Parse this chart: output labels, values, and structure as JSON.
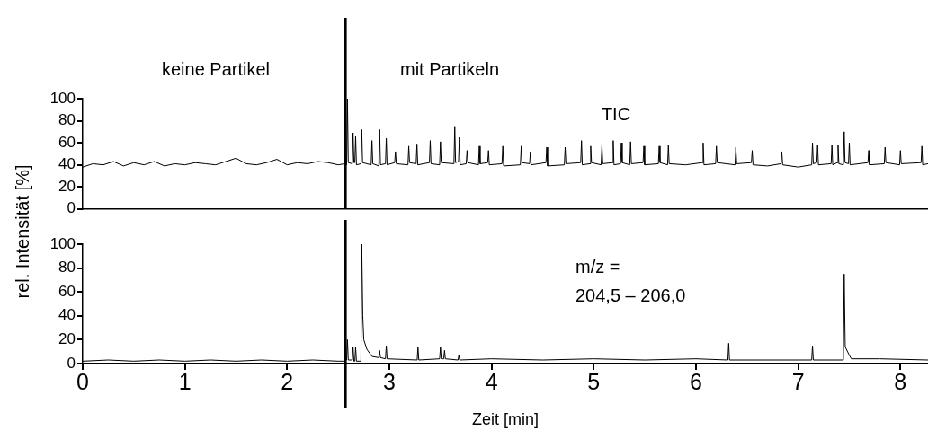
{
  "chart_data": [
    {
      "type": "line",
      "ylabel": "rel. Intensität [%]",
      "xlim": [
        0,
        8.27
      ],
      "ylim": [
        0,
        100
      ],
      "yticks": [
        0,
        20,
        40,
        60,
        80,
        100
      ],
      "tick_labels": "y",
      "annotations": [
        "keine Partikel",
        "mit Partikeln",
        "TIC"
      ],
      "ref_lines": [
        {
          "axis": "x",
          "value": 2.57,
          "color": "#000000"
        }
      ],
      "series": [
        {
          "color": "#000000",
          "x": [
            0,
            0.1,
            0.2,
            0.3,
            0.4,
            0.5,
            0.6,
            0.7,
            0.8,
            0.9,
            1.0,
            1.1,
            1.2,
            1.3,
            1.4,
            1.5,
            1.6,
            1.7,
            1.8,
            1.9,
            2.0,
            2.1,
            2.2,
            2.3,
            2.4,
            2.5,
            2.565,
            2.582,
            2.59,
            2.598,
            2.637,
            2.645,
            2.653,
            2.662,
            2.67,
            2.678,
            2.722,
            2.73,
            2.738,
            2.822,
            2.83,
            2.838,
            2.897,
            2.905,
            2.913,
            2.962,
            2.97,
            2.978,
            3.052,
            3.06,
            3.068,
            3.182,
            3.19,
            3.198,
            3.262,
            3.27,
            3.278,
            3.392,
            3.4,
            3.408,
            3.492,
            3.5,
            3.508,
            3.632,
            3.64,
            3.648,
            3.677,
            3.685,
            3.693,
            3.752,
            3.76,
            3.768,
            3.872,
            3.88,
            3.888,
            3.962,
            3.97,
            3.978,
            4.102,
            4.11,
            4.118,
            4.282,
            4.29,
            4.298,
            4.372,
            4.38,
            4.388,
            4.532,
            4.54,
            4.548,
            4.712,
            4.72,
            4.728,
            4.872,
            4.88,
            4.888,
            4.962,
            4.97,
            4.978,
            5.072,
            5.08,
            5.088,
            5.182,
            5.19,
            5.198,
            5.262,
            5.27,
            5.278,
            5.352,
            5.36,
            5.368,
            5.482,
            5.49,
            5.498,
            5.632,
            5.64,
            5.648,
            5.722,
            5.73,
            5.738,
            5.9,
            6.062,
            6.07,
            6.078,
            6.192,
            6.2,
            6.208,
            6.382,
            6.39,
            6.398,
            6.542,
            6.55,
            6.558,
            6.7,
            6.832,
            6.84,
            6.848,
            7.0,
            7.132,
            7.14,
            7.148,
            7.182,
            7.19,
            7.198,
            7.322,
            7.33,
            7.338,
            7.382,
            7.39,
            7.398,
            7.442,
            7.45,
            7.458,
            7.492,
            7.5,
            7.508,
            7.682,
            7.69,
            7.698,
            7.842,
            7.85,
            7.858,
            7.992,
            8.0,
            8.008,
            8.202,
            8.21,
            8.218,
            8.27
          ],
          "values": [
            38,
            41,
            40,
            43,
            39,
            42,
            40,
            43,
            39,
            41,
            40,
            42,
            41,
            40,
            43,
            46,
            41,
            40,
            42,
            45,
            40,
            42,
            41,
            43,
            42,
            40,
            41,
            40,
            100,
            42,
            41,
            69,
            42,
            42,
            66,
            40,
            41,
            72,
            42,
            40,
            62,
            41,
            39,
            72,
            40,
            41,
            64,
            40,
            42,
            52,
            41,
            40,
            57,
            42,
            41,
            59,
            40,
            42,
            62,
            41,
            40,
            61,
            42,
            41,
            75,
            42,
            43,
            65,
            40,
            41,
            53,
            42,
            40,
            57,
            41,
            42,
            53,
            40,
            41,
            57,
            39,
            40,
            57,
            42,
            41,
            52,
            40,
            42,
            56,
            39,
            40,
            56,
            41,
            42,
            62,
            40,
            41,
            57,
            42,
            40,
            58,
            41,
            42,
            62,
            40,
            41,
            60,
            42,
            40,
            61,
            41,
            42,
            57,
            40,
            41,
            57,
            42,
            40,
            58,
            41,
            40,
            42,
            60,
            40,
            41,
            57,
            42,
            40,
            56,
            41,
            42,
            53,
            40,
            39,
            41,
            52,
            40,
            38,
            40,
            60,
            41,
            42,
            58,
            40,
            41,
            58,
            40,
            42,
            58,
            41,
            40,
            70,
            42,
            41,
            60,
            40,
            42,
            53,
            40,
            41,
            56,
            42,
            40,
            53,
            41,
            42,
            57,
            40,
            41
          ]
        }
      ]
    },
    {
      "type": "line",
      "xlabel": "Zeit [min]",
      "xlim": [
        0,
        8.27
      ],
      "xticks": [
        0,
        1,
        2,
        3,
        4,
        5,
        6,
        7,
        8
      ],
      "ylim": [
        0,
        100
      ],
      "yticks": [
        0,
        20,
        40,
        60,
        80,
        100
      ],
      "annotations": [
        "m/z =",
        "204,5 – 206,0"
      ],
      "ref_lines": [
        {
          "axis": "x",
          "value": 2.57,
          "color": "#000000"
        }
      ],
      "series": [
        {
          "color": "#000000",
          "x": [
            0,
            0.25,
            0.5,
            0.75,
            1,
            1.25,
            1.5,
            1.75,
            2,
            2.25,
            2.5,
            2.565,
            2.582,
            2.59,
            2.598,
            2.637,
            2.645,
            2.653,
            2.662,
            2.67,
            2.678,
            2.722,
            2.73,
            2.74,
            2.75,
            2.78,
            2.83,
            2.897,
            2.905,
            2.913,
            2.962,
            2.97,
            2.978,
            3.272,
            3.28,
            3.288,
            3.492,
            3.5,
            3.508,
            3.532,
            3.54,
            3.548,
            3.672,
            3.68,
            3.688,
            4.0,
            4.5,
            5.0,
            5.5,
            6.0,
            6.312,
            6.32,
            6.328,
            6.8,
            7.132,
            7.14,
            7.148,
            7.442,
            7.45,
            7.46,
            7.5,
            7.52,
            7.8,
            8.27
          ],
          "values": [
            2,
            3,
            2,
            3,
            2,
            3,
            2,
            3,
            2,
            3,
            2,
            2,
            3,
            20,
            3,
            3,
            14,
            2,
            2,
            14,
            2,
            2,
            100,
            40,
            20,
            12,
            6,
            5,
            11,
            5,
            4,
            15,
            4,
            3,
            14,
            3,
            4,
            14,
            4,
            4,
            11,
            4,
            3,
            7,
            3,
            4,
            3,
            4,
            3,
            4,
            3,
            17,
            3,
            3,
            3,
            15,
            3,
            3,
            75,
            14,
            7,
            4,
            4,
            3
          ]
        }
      ]
    }
  ]
}
